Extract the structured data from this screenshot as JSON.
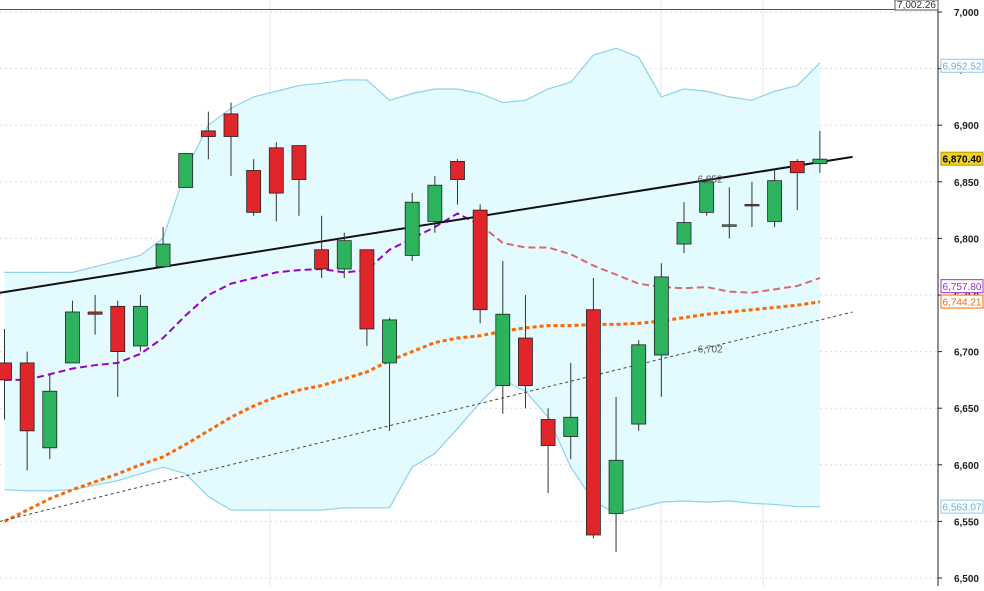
{
  "chart_data": {
    "type": "candlestick",
    "x_count": 37,
    "ylim": [
      6500,
      7000
    ],
    "y_ticks": [
      "6,500",
      "6,550",
      "6,600",
      "6,650",
      "6,700",
      "6,750",
      "6,800",
      "6,850",
      "6,900",
      "6,950",
      "7,000"
    ],
    "y_tick_values": [
      6500,
      6550,
      6600,
      6650,
      6700,
      6750,
      6800,
      6850,
      6900,
      6950,
      7000
    ],
    "candles": [
      {
        "o": 6690,
        "h": 6720,
        "l": 6640,
        "c": 6675
      },
      {
        "o": 6690,
        "h": 6700,
        "l": 6595,
        "c": 6630
      },
      {
        "o": 6615,
        "h": 6680,
        "l": 6605,
        "c": 6665
      },
      {
        "o": 6690,
        "h": 6745,
        "l": 6690,
        "c": 6735
      },
      {
        "o": 6735,
        "h": 6750,
        "l": 6715,
        "c": 6733
      },
      {
        "o": 6740,
        "h": 6745,
        "l": 6660,
        "c": 6700
      },
      {
        "o": 6705,
        "h": 6750,
        "l": 6700,
        "c": 6740
      },
      {
        "o": 6775,
        "h": 6810,
        "l": 6775,
        "c": 6795
      },
      {
        "o": 6845,
        "h": 6875,
        "l": 6845,
        "c": 6875
      },
      {
        "o": 6895,
        "h": 6912,
        "l": 6870,
        "c": 6890
      },
      {
        "o": 6910,
        "h": 6920,
        "l": 6855,
        "c": 6890
      },
      {
        "o": 6860,
        "h": 6870,
        "l": 6820,
        "c": 6823
      },
      {
        "o": 6880,
        "h": 6885,
        "l": 6815,
        "c": 6840
      },
      {
        "o": 6882,
        "h": 6882,
        "l": 6820,
        "c": 6852
      },
      {
        "o": 6790,
        "h": 6820,
        "l": 6765,
        "c": 6773
      },
      {
        "o": 6773,
        "h": 6805,
        "l": 6765,
        "c": 6798
      },
      {
        "o": 6790,
        "h": 6790,
        "l": 6705,
        "c": 6720
      },
      {
        "o": 6690,
        "h": 6730,
        "l": 6630,
        "c": 6728
      },
      {
        "o": 6785,
        "h": 6840,
        "l": 6780,
        "c": 6832
      },
      {
        "o": 6815,
        "h": 6855,
        "l": 6805,
        "c": 6847
      },
      {
        "o": 6868,
        "h": 6870,
        "l": 6830,
        "c": 6852
      },
      {
        "o": 6825,
        "h": 6830,
        "l": 6725,
        "c": 6737
      },
      {
        "o": 6670,
        "h": 6780,
        "l": 6645,
        "c": 6733
      },
      {
        "o": 6712,
        "h": 6750,
        "l": 6650,
        "c": 6670
      },
      {
        "o": 6640,
        "h": 6650,
        "l": 6575,
        "c": 6617
      },
      {
        "o": 6625,
        "h": 6690,
        "l": 6605,
        "c": 6642
      },
      {
        "o": 6737,
        "h": 6765,
        "l": 6535,
        "c": 6538
      },
      {
        "o": 6557,
        "h": 6660,
        "l": 6523,
        "c": 6604
      },
      {
        "o": 6636,
        "h": 6710,
        "l": 6630,
        "c": 6706
      },
      {
        "o": 6697,
        "h": 6778,
        "l": 6660,
        "c": 6766
      },
      {
        "o": 6795,
        "h": 6832,
        "l": 6787,
        "c": 6814
      },
      {
        "o": 6823,
        "h": 6853,
        "l": 6820,
        "c": 6850
      },
      {
        "o": 6812,
        "h": 6845,
        "l": 6800,
        "c": 6812
      },
      {
        "o": 6830,
        "h": 6850,
        "l": 6810,
        "c": 6829
      },
      {
        "o": 6815,
        "h": 6860,
        "l": 6810,
        "c": 6851
      },
      {
        "o": 6868,
        "h": 6870,
        "l": 6825,
        "c": 6858
      },
      {
        "o": 6866,
        "h": 6895,
        "l": 6858,
        "c": 6870
      }
    ],
    "bollinger": {
      "upper": [
        6770,
        6770,
        6770,
        6770,
        6775,
        6780,
        6785,
        6800,
        6860,
        6900,
        6915,
        6925,
        6930,
        6935,
        6937,
        6940,
        6940,
        6922,
        6928,
        6932,
        6932,
        6928,
        6920,
        6922,
        6932,
        6938,
        6962,
        6968,
        6960,
        6925,
        6932,
        6930,
        6925,
        6922,
        6930,
        6935,
        6955
      ],
      "middle": [
        6675,
        6675,
        6680,
        6685,
        6688,
        6690,
        6698,
        6712,
        6732,
        6750,
        6760,
        6765,
        6770,
        6772,
        6773,
        6770,
        6772,
        6790,
        6800,
        6810,
        6822,
        6812,
        6796,
        6792,
        6792,
        6786,
        6776,
        6768,
        6760,
        6757,
        6756,
        6757,
        6753,
        6752,
        6755,
        6758,
        6765
      ],
      "lower": [
        6578,
        6577,
        6577,
        6578,
        6582,
        6586,
        6592,
        6598,
        6592,
        6572,
        6560,
        6560,
        6560,
        6560,
        6560,
        6562,
        6562,
        6562,
        6598,
        6610,
        6632,
        6655,
        6675,
        6665,
        6642,
        6598,
        6568,
        6557,
        6562,
        6567,
        6568,
        6567,
        6568,
        6566,
        6565,
        6563,
        6563
      ]
    },
    "ma_slow": [
      6550,
      6560,
      6570,
      6578,
      6585,
      6592,
      6600,
      6607,
      6618,
      6630,
      6642,
      6652,
      6660,
      6666,
      6670,
      6676,
      6682,
      6692,
      6700,
      6708,
      6712,
      6714,
      6718,
      6721,
      6723,
      6723,
      6724,
      6724,
      6725,
      6727,
      6730,
      6733,
      6735,
      6737,
      6739,
      6741,
      6744
    ],
    "trendline_solid": {
      "x0": 0,
      "y0": 6752,
      "x1": 37,
      "y1": 6872
    },
    "trendline_dashed": {
      "x0": 0,
      "y0": 6550,
      "x1": 37,
      "y1": 6735
    },
    "line_labels": [
      {
        "text": "6,852",
        "x": 30.6,
        "y": 6852
      },
      {
        "text": "6,702",
        "x": 30.6,
        "y": 6702
      }
    ],
    "price_badges": [
      {
        "text": "6,952.52",
        "value": 6952.52,
        "fill": "#ffffff",
        "stroke": "#8ec9e8",
        "text_color": "#6aaed6"
      },
      {
        "text": "6,870.40",
        "value": 6870.4,
        "fill": "#f2d024",
        "stroke": "#b59a00",
        "text_color": "#000000",
        "bold": true
      },
      {
        "text": "6,757.80",
        "value": 6757.8,
        "fill": "#ffffff",
        "stroke": "#9933cc",
        "text_color": "#9933cc"
      },
      {
        "text": "6,744.21",
        "value": 6744.21,
        "fill": "#ffffff",
        "stroke": "#ff6600",
        "text_color": "#ff6600"
      },
      {
        "text": "6,563.07",
        "value": 6563.07,
        "fill": "#ffffff",
        "stroke": "#8ec9e8",
        "text_color": "#6aaed6"
      }
    ],
    "top_label": {
      "text": "7,002.26",
      "value": 7002.26
    },
    "colors": {
      "up": "#2db35d",
      "down": "#e0262b",
      "wick": "#333333",
      "band_fill": "#e0fbff",
      "band_line": "#8ed0ee",
      "ma_mid_before": "#9900cc",
      "ma_mid_after": "#d96b6b",
      "ma_slow": "#ff6600",
      "trend": "#111111",
      "grid": "#d8dde4"
    }
  }
}
